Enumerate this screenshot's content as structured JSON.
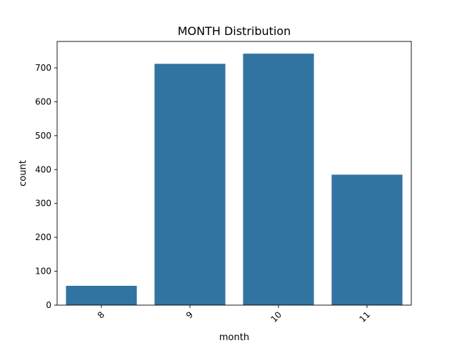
{
  "chart_data": {
    "type": "bar",
    "title": "MONTH Distribution",
    "xlabel": "month",
    "ylabel": "count",
    "categories": [
      "8",
      "9",
      "10",
      "11"
    ],
    "values": [
      57,
      712,
      742,
      385
    ],
    "ylim": [
      0,
      778
    ],
    "yticks": [
      0,
      100,
      200,
      300,
      400,
      500,
      600,
      700
    ],
    "xtick_rotation_deg": 45,
    "grid": false,
    "legend": "none",
    "bar_color": "#3274a1",
    "axis_color": "#000000"
  }
}
